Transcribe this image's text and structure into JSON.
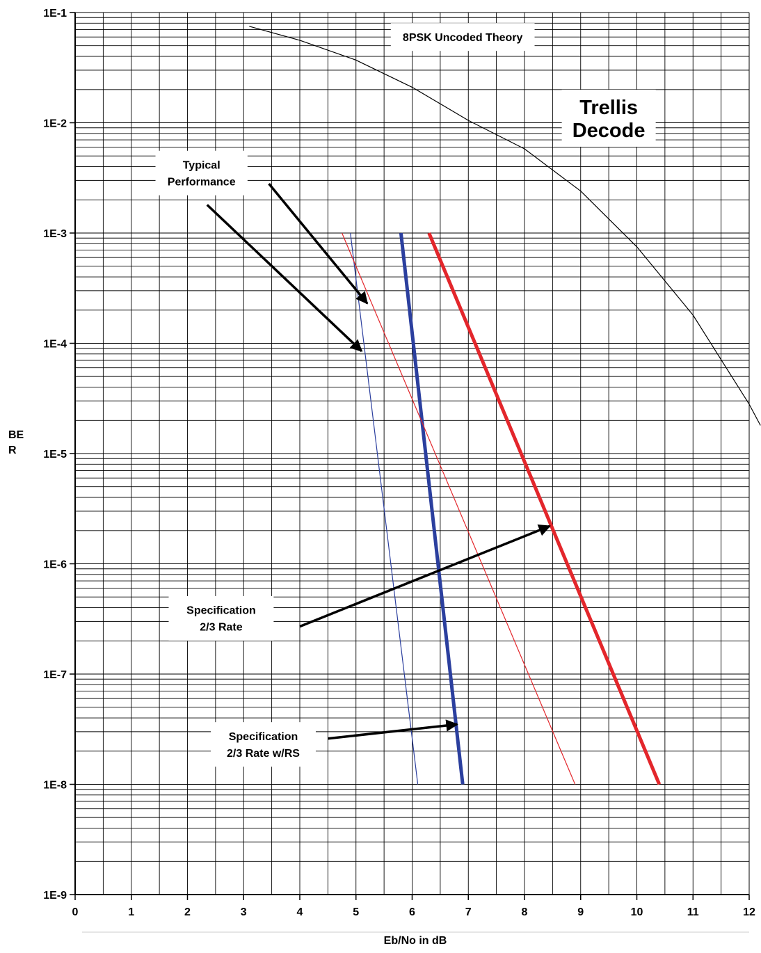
{
  "chart_data": {
    "type": "line",
    "title": "",
    "xlabel": "Eb/No in dB",
    "ylabel_lines": [
      "BE",
      "R"
    ],
    "xlim": [
      0,
      12
    ],
    "ylim": [
      1e-09,
      0.1
    ],
    "y_scale": "log",
    "grid": true,
    "x_ticks": [
      "0",
      "1",
      "2",
      "3",
      "4",
      "5",
      "6",
      "7",
      "8",
      "9",
      "10",
      "11",
      "12"
    ],
    "y_ticks": [
      "1E-1",
      "1E-2",
      "1E-3",
      "1E-4",
      "1E-5",
      "1E-6",
      "1E-7",
      "1E-8",
      "1E-9"
    ],
    "series": [
      {
        "color": "#000000",
        "style": "thin",
        "points": [
          [
            3.1,
            0.075
          ],
          [
            4.0,
            0.056
          ],
          [
            5.0,
            0.037
          ],
          [
            6.0,
            0.021
          ],
          [
            7.0,
            0.0105
          ],
          [
            8.0,
            0.0058
          ],
          [
            9.0,
            0.0024
          ],
          [
            10.0,
            0.00075
          ],
          [
            11.0,
            0.00018
          ],
          [
            12.0,
            2.8e-05
          ],
          [
            12.2,
            1.8e-05
          ]
        ]
      },
      {
        "color": "#2b3f9e",
        "style": "thin",
        "points": [
          [
            4.9,
            0.001
          ],
          [
            6.1,
            1e-08
          ]
        ]
      },
      {
        "color": "#2b3f9e",
        "style": "thick",
        "points": [
          [
            5.8,
            0.001
          ],
          [
            6.9,
            1e-08
          ]
        ]
      },
      {
        "color": "#e3262b",
        "style": "thin",
        "points": [
          [
            4.75,
            0.001
          ],
          [
            8.9,
            1e-08
          ]
        ]
      },
      {
        "color": "#e3262b",
        "style": "thick",
        "points": [
          [
            6.3,
            0.001
          ],
          [
            10.4,
            1e-08
          ]
        ]
      }
    ],
    "annotations": [
      {
        "text_lines": [
          "8PSK Uncoded Theory"
        ],
        "style": "box",
        "at": [
          6.9,
          0.06
        ],
        "arrows": []
      },
      {
        "text_lines": [
          "Trellis",
          "Decode"
        ],
        "style": "big",
        "at": [
          9.5,
          0.011
        ],
        "arrows": []
      },
      {
        "text_lines": [
          "Typical",
          "Performance"
        ],
        "style": "box",
        "at": [
          2.25,
          0.0035
        ],
        "arrows": [
          {
            "from": [
              3.45,
              0.0028
            ],
            "to": [
              5.2,
              0.00023
            ]
          },
          {
            "from": [
              2.35,
              0.0018
            ],
            "to": [
              5.1,
              8.5e-05
            ]
          }
        ]
      },
      {
        "text_lines": [
          "Specification",
          "2/3 Rate"
        ],
        "style": "box",
        "at": [
          2.6,
          3.2e-07
        ],
        "arrows": [
          {
            "from": [
              4.0,
              2.7e-07
            ],
            "to": [
              8.45,
              2.2e-06
            ]
          }
        ]
      },
      {
        "text_lines": [
          "Specification",
          "2/3 Rate w/RS"
        ],
        "style": "box",
        "at": [
          3.35,
          2.3e-08
        ],
        "arrows": [
          {
            "from": [
              4.5,
              2.6e-08
            ],
            "to": [
              6.8,
              3.5e-08
            ]
          }
        ]
      }
    ],
    "colors": {
      "axis": "#000000",
      "grid": "#000000",
      "blue": "#2b3f9e",
      "red": "#e3262b"
    }
  }
}
